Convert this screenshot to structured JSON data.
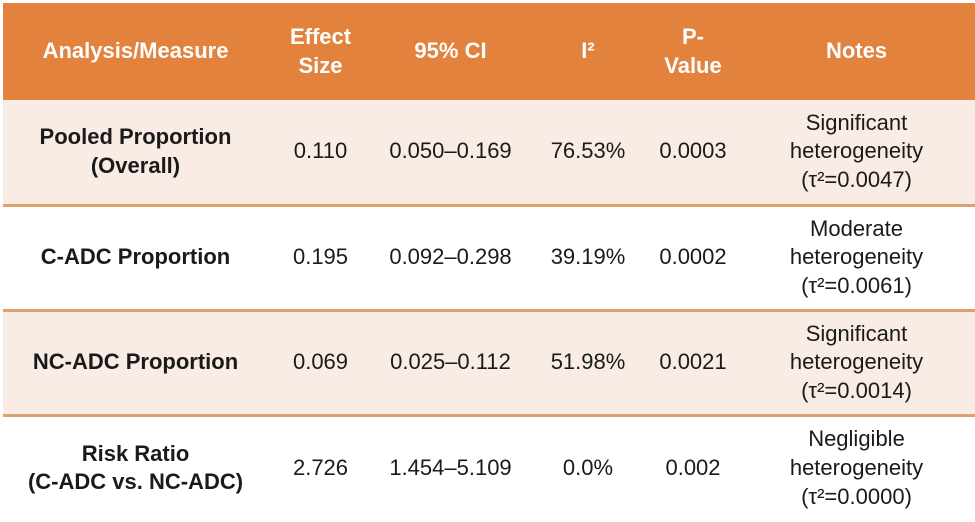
{
  "theme": {
    "header_bg": "#E2823D",
    "header_text": "#FFFFFF",
    "row_bg": "#FFFFFF",
    "row_alt_bg": "#F8ECE5",
    "divider": "#DCA26F",
    "body_text": "#1A1A1A"
  },
  "table": {
    "columns": [
      {
        "label": "Analysis/Measure"
      },
      {
        "label": "Effect\nSize"
      },
      {
        "label": "95% CI"
      },
      {
        "label": "I²"
      },
      {
        "label": "P-\nValue"
      },
      {
        "label": "Notes"
      }
    ],
    "rows": [
      {
        "measure": "Pooled Proportion\n(Overall)",
        "effect_size": "0.110",
        "ci_95": "0.050–0.169",
        "i_squared": "76.53%",
        "p_value": "0.0003",
        "notes": "Significant\nheterogeneity\n(τ²=0.0047)"
      },
      {
        "measure": "C-ADC Proportion",
        "effect_size": "0.195",
        "ci_95": "0.092–0.298",
        "i_squared": "39.19%",
        "p_value": "0.0002",
        "notes": "Moderate\nheterogeneity\n(τ²=0.0061)"
      },
      {
        "measure": "NC-ADC Proportion",
        "effect_size": "0.069",
        "ci_95": "0.025–0.112",
        "i_squared": "51.98%",
        "p_value": "0.0021",
        "notes": "Significant\nheterogeneity\n(τ²=0.0014)"
      },
      {
        "measure": "Risk Ratio\n(C-ADC vs. NC-ADC)",
        "effect_size": "2.726",
        "ci_95": "1.454–5.109",
        "i_squared": "0.0%",
        "p_value": "0.002",
        "notes": "Negligible\nheterogeneity\n(τ²=0.0000)"
      }
    ]
  }
}
